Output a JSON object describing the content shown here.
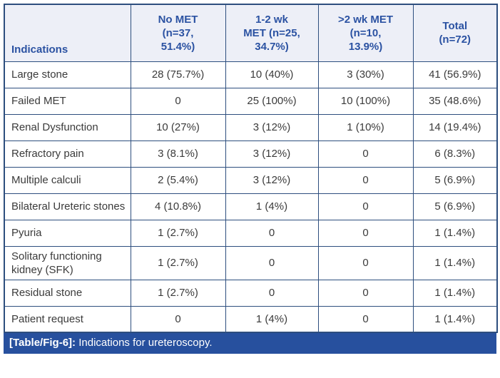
{
  "table": {
    "columns": [
      {
        "id": "indications",
        "label": "Indications"
      },
      {
        "id": "no-met",
        "label": "No MET\n(n=37,\n51.4%)"
      },
      {
        "id": "met-1-2wk",
        "label": "1-2 wk\nMET (n=25,\n34.7%)"
      },
      {
        "id": "met-gt-2wk",
        "label": ">2 wk MET\n(n=10,\n13.9%)"
      },
      {
        "id": "total",
        "label": "Total\n(n=72)"
      }
    ],
    "rows": [
      {
        "indication": "Large stone",
        "values": [
          "28 (75.7%)",
          "10 (40%)",
          "3 (30%)",
          "41 (56.9%)"
        ]
      },
      {
        "indication": "Failed MET",
        "values": [
          "0",
          "25 (100%)",
          "10 (100%)",
          "35 (48.6%)"
        ]
      },
      {
        "indication": "Renal Dysfunction",
        "values": [
          "10 (27%)",
          "3 (12%)",
          "1 (10%)",
          "14 (19.4%)"
        ]
      },
      {
        "indication": "Refractory pain",
        "values": [
          "3 (8.1%)",
          "3 (12%)",
          "0",
          "6 (8.3%)"
        ]
      },
      {
        "indication": "Multiple calculi",
        "values": [
          "2 (5.4%)",
          "3 (12%)",
          "0",
          "5 (6.9%)"
        ]
      },
      {
        "indication": "Bilateral Ureteric stones",
        "values": [
          "4 (10.8%)",
          "1 (4%)",
          "0",
          "5 (6.9%)"
        ]
      },
      {
        "indication": "Pyuria",
        "values": [
          "1 (2.7%)",
          "0",
          "0",
          "1 (1.4%)"
        ]
      },
      {
        "indication": "Solitary functioning kidney (SFK)",
        "values": [
          "1 (2.7%)",
          "0",
          "0",
          "1 (1.4%)"
        ]
      },
      {
        "indication": "Residual stone",
        "values": [
          "1 (2.7%)",
          "0",
          "0",
          "1 (1.4%)"
        ]
      },
      {
        "indication": "Patient request",
        "values": [
          "0",
          "1 (4%)",
          "0",
          "1 (1.4%)"
        ]
      }
    ]
  },
  "caption": {
    "tag": "[Table/Fig-6]:",
    "text": " Indications for ureteroscopy."
  },
  "colors": {
    "border": "#2d4e7e",
    "header_bg": "#edeff7",
    "header_text": "#2b52a2",
    "body_text": "#3b3b3b",
    "caption_bg": "#27509e",
    "caption_text": "#ffffff"
  }
}
